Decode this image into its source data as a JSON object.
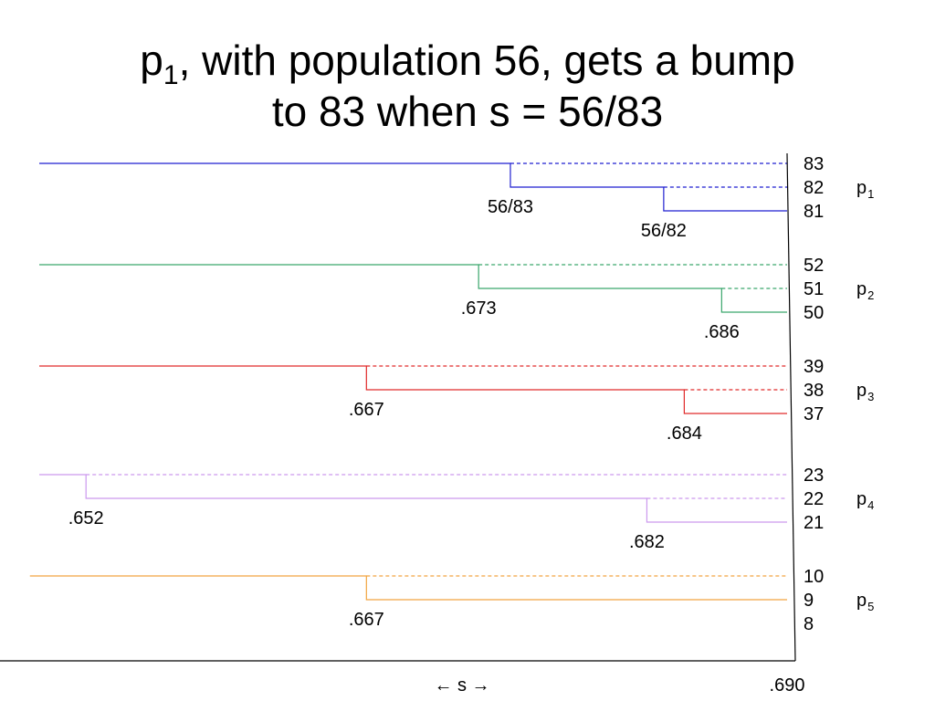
{
  "title": {
    "prefix": "p",
    "prefix_sub": "1",
    "line1_rest": ", with population 56, gets a bump",
    "line2": "to 83 when s = 56/83"
  },
  "axis": {
    "x_label": "← s →",
    "end_label": ".690"
  },
  "parties": [
    {
      "name": "p",
      "sub": "1",
      "color": "#1f1fd0",
      "levels": [
        "83",
        "82",
        "81"
      ],
      "thresholds": [
        {
          "label": "56/83",
          "value": 0.6747
        },
        {
          "label": "56/82",
          "value": 0.6829
        }
      ],
      "start_value": 0.6495
    },
    {
      "name": "p",
      "sub": "2",
      "color": "#3aa66c",
      "levels": [
        "52",
        "51",
        "50"
      ],
      "thresholds": [
        {
          "label": ".673",
          "value": 0.673
        },
        {
          "label": ".686",
          "value": 0.686
        }
      ],
      "start_value": 0.6495
    },
    {
      "name": "p",
      "sub": "3",
      "color": "#e02a2a",
      "levels": [
        "39",
        "38",
        "37"
      ],
      "thresholds": [
        {
          "label": ".667",
          "value": 0.667
        },
        {
          "label": ".684",
          "value": 0.684
        }
      ],
      "start_value": 0.6495
    },
    {
      "name": "p",
      "sub": "4",
      "color": "#cc99ee",
      "levels": [
        "23",
        "22",
        "21"
      ],
      "thresholds": [
        {
          "label": ".652",
          "value": 0.652
        },
        {
          "label": ".682",
          "value": 0.682
        }
      ],
      "start_value": 0.6495
    },
    {
      "name": "p",
      "sub": "5",
      "color": "#f2a540",
      "levels": [
        "10",
        "9",
        "8"
      ],
      "thresholds": [
        {
          "label": ".667",
          "value": 0.667
        }
      ],
      "start_value": 0.649
    }
  ]
}
